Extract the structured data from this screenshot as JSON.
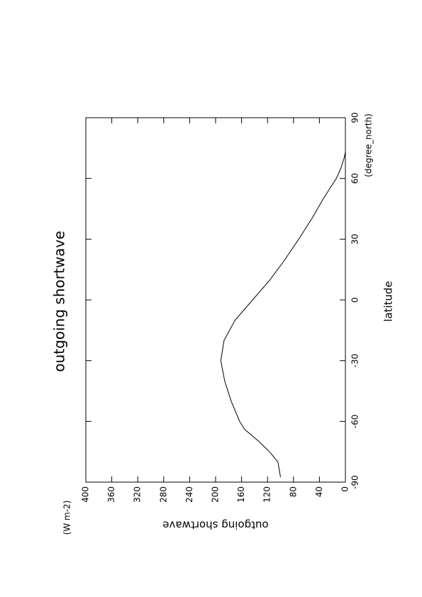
{
  "chart_data": {
    "type": "line",
    "title": "outgoing shortwave",
    "x_label": "latitude",
    "x_unit": "(degree_north)",
    "y_label": "outgoing shortwave",
    "y_unit": "(W m-2)",
    "x": [
      -87.5,
      -80,
      -75,
      -70,
      -64,
      -60,
      -50,
      -40,
      -30,
      -20,
      -10,
      0,
      10,
      20,
      30,
      40,
      50,
      60,
      65,
      70,
      73
    ],
    "series": [
      {
        "name": "outgoing shortwave",
        "color": "#000000",
        "values": [
          100,
          104,
          117,
          133,
          155,
          163,
          176,
          186,
          192,
          187,
          170,
          143,
          116,
          93,
          72,
          52,
          34,
          14,
          7,
          2,
          0
        ]
      }
    ],
    "xlim": [
      -90,
      90
    ],
    "xticks": [
      -90,
      -60,
      -30,
      0,
      30,
      60,
      90
    ],
    "ylim": [
      0,
      400
    ],
    "yticks": [
      0,
      40,
      80,
      120,
      160,
      200,
      240,
      280,
      320,
      360,
      400
    ]
  }
}
